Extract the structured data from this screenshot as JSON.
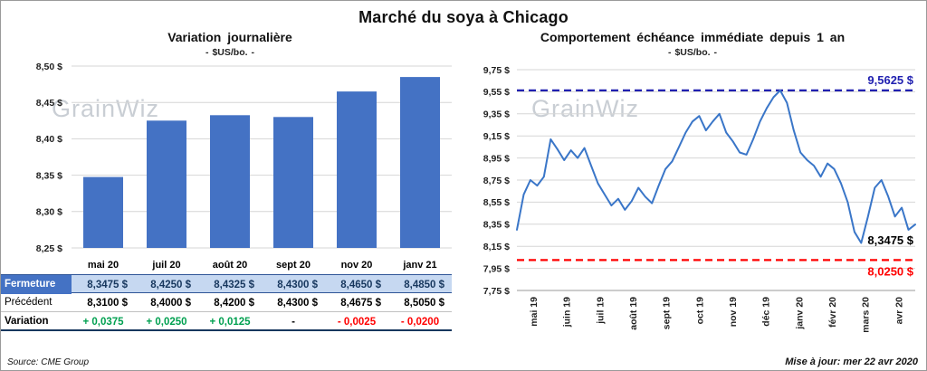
{
  "page": {
    "title": "Marché du soya à Chicago",
    "source": "Source: CME Group",
    "updated": "Mise à jour: mer 22 avr 2020",
    "watermark": "GrainWiz"
  },
  "colors": {
    "accent_blue": "#4472C4",
    "line_blue": "#3A76C8",
    "navy_dashed": "#2020B0",
    "red": "#FF0000",
    "positive_green": "#00A050",
    "highlight_row": "#C6D8F1",
    "navy_text": "#17375E"
  },
  "chart_data": [
    {
      "type": "bar",
      "title": "Variation journalière",
      "unit_label": "- $US/bo. -",
      "categories": [
        "mai 20",
        "juil 20",
        "août 20",
        "sept 20",
        "nov 20",
        "janv 21"
      ],
      "values": [
        8.3475,
        8.425,
        8.4325,
        8.43,
        8.465,
        8.485
      ],
      "ylim": [
        8.25,
        8.5
      ],
      "ystep": 0.05,
      "y_ticks": [
        "8,50 $",
        "8,45 $",
        "8,40 $",
        "8,35 $",
        "8,30 $",
        "8,25 $"
      ],
      "bar_color": "#4472C4",
      "grid": true,
      "legend": "none"
    },
    {
      "type": "line",
      "title": "Comportement échéance immédiate depuis 1 an",
      "unit_label": "- $US/bo. -",
      "x_labels": [
        "mai 19",
        "juin 19",
        "juil 19",
        "août 19",
        "sept 19",
        "oct 19",
        "nov 19",
        "déc 19",
        "janv 20",
        "févr 20",
        "mars 20",
        "avr 20"
      ],
      "values": [
        8.3,
        8.62,
        8.75,
        8.7,
        8.78,
        9.12,
        9.03,
        8.93,
        9.02,
        8.95,
        9.04,
        8.88,
        8.72,
        8.62,
        8.52,
        8.58,
        8.48,
        8.56,
        8.68,
        8.6,
        8.54,
        8.7,
        8.85,
        8.92,
        9.05,
        9.18,
        9.28,
        9.33,
        9.2,
        9.28,
        9.35,
        9.18,
        9.1,
        9.0,
        8.98,
        9.12,
        9.28,
        9.4,
        9.5,
        9.5625,
        9.45,
        9.2,
        9.0,
        8.93,
        8.88,
        8.78,
        8.9,
        8.85,
        8.72,
        8.55,
        8.28,
        8.18,
        8.42,
        8.68,
        8.75,
        8.6,
        8.42,
        8.5,
        8.3,
        8.3475
      ],
      "ylim": [
        7.75,
        9.75
      ],
      "ystep": 0.2,
      "y_ticks": [
        "9,75 $",
        "9,55 $",
        "9,35 $",
        "9,15 $",
        "8,95 $",
        "8,75 $",
        "8,55 $",
        "8,35 $",
        "8,15 $",
        "7,95 $",
        "7,75 $"
      ],
      "line_color": "#3A76C8",
      "grid": true,
      "hlines": [
        {
          "value": 9.5625,
          "label": "9,5625 $",
          "color": "#2020B0",
          "label_pos": "above"
        },
        {
          "value": 8.025,
          "label": "8,0250 $",
          "color": "#FF0000",
          "label_pos": "below"
        }
      ],
      "end_label": {
        "text": "8,3475 $",
        "value": 8.3475,
        "color": "#000000"
      }
    }
  ],
  "table": {
    "rows": [
      {
        "label": "Fermeture",
        "style": "fermeture",
        "cells": [
          "8,3475 $",
          "8,4250 $",
          "8,4325 $",
          "8,4300 $",
          "8,4650 $",
          "8,4850 $"
        ]
      },
      {
        "label": "Précédent",
        "style": "precedent",
        "cells": [
          "8,3100 $",
          "8,4000 $",
          "8,4200 $",
          "8,4300 $",
          "8,4675 $",
          "8,5050 $"
        ]
      },
      {
        "label": "Variation",
        "style": "variation",
        "cells": [
          {
            "text": "+ 0,0375",
            "tone": "pos"
          },
          {
            "text": "+ 0,0250",
            "tone": "pos"
          },
          {
            "text": "+ 0,0125",
            "tone": "pos"
          },
          {
            "text": "-",
            "tone": "neutral"
          },
          {
            "text": "- 0,0025",
            "tone": "neg"
          },
          {
            "text": "- 0,0200",
            "tone": "neg"
          }
        ]
      }
    ]
  }
}
